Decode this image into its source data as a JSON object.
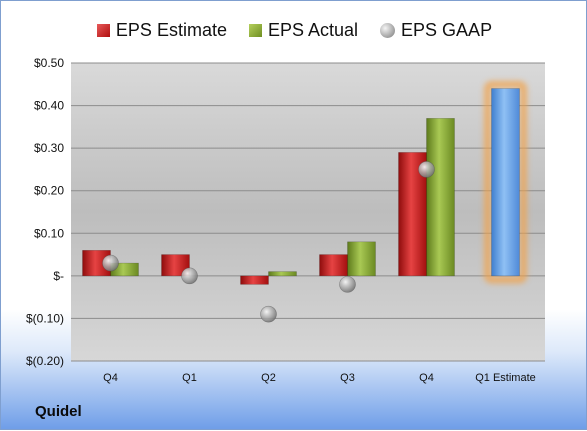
{
  "company": "Quidel",
  "legend": {
    "estimate": "EPS Estimate",
    "actual": "EPS Actual",
    "gaap": "EPS GAAP"
  },
  "colors": {
    "estimate": "#c41a1a",
    "actual": "#8aaa34",
    "gaap": "#a8a8a8",
    "forecast": "#5b9be0",
    "highlight": "#f2a24a"
  },
  "chart_data": {
    "type": "bar",
    "categories": [
      "Q4",
      "Q1",
      "Q2",
      "Q3",
      "Q4",
      "Q1 Estimate"
    ],
    "series": [
      {
        "name": "EPS Estimate",
        "values": [
          0.06,
          0.05,
          -0.02,
          0.05,
          0.29,
          null
        ]
      },
      {
        "name": "EPS Actual",
        "values": [
          0.03,
          null,
          0.01,
          0.08,
          0.37,
          null
        ]
      },
      {
        "name": "EPS GAAP",
        "values": [
          0.03,
          0.0,
          -0.09,
          -0.02,
          0.25,
          null
        ]
      },
      {
        "name": "Q1 Estimate",
        "values": [
          null,
          null,
          null,
          null,
          null,
          0.44
        ]
      }
    ],
    "ylim": [
      -0.2,
      0.5
    ],
    "yticks": [
      {
        "value": 0.5,
        "label": "$0.50"
      },
      {
        "value": 0.4,
        "label": "$0.40"
      },
      {
        "value": 0.3,
        "label": "$0.30"
      },
      {
        "value": 0.2,
        "label": "$0.20"
      },
      {
        "value": 0.1,
        "label": "$0.10"
      },
      {
        "value": 0.0,
        "label": "$-"
      },
      {
        "value": -0.1,
        "label": "$(0.10)"
      },
      {
        "value": -0.2,
        "label": "$(0.20)"
      }
    ],
    "grid": true,
    "legend_position": "top"
  }
}
